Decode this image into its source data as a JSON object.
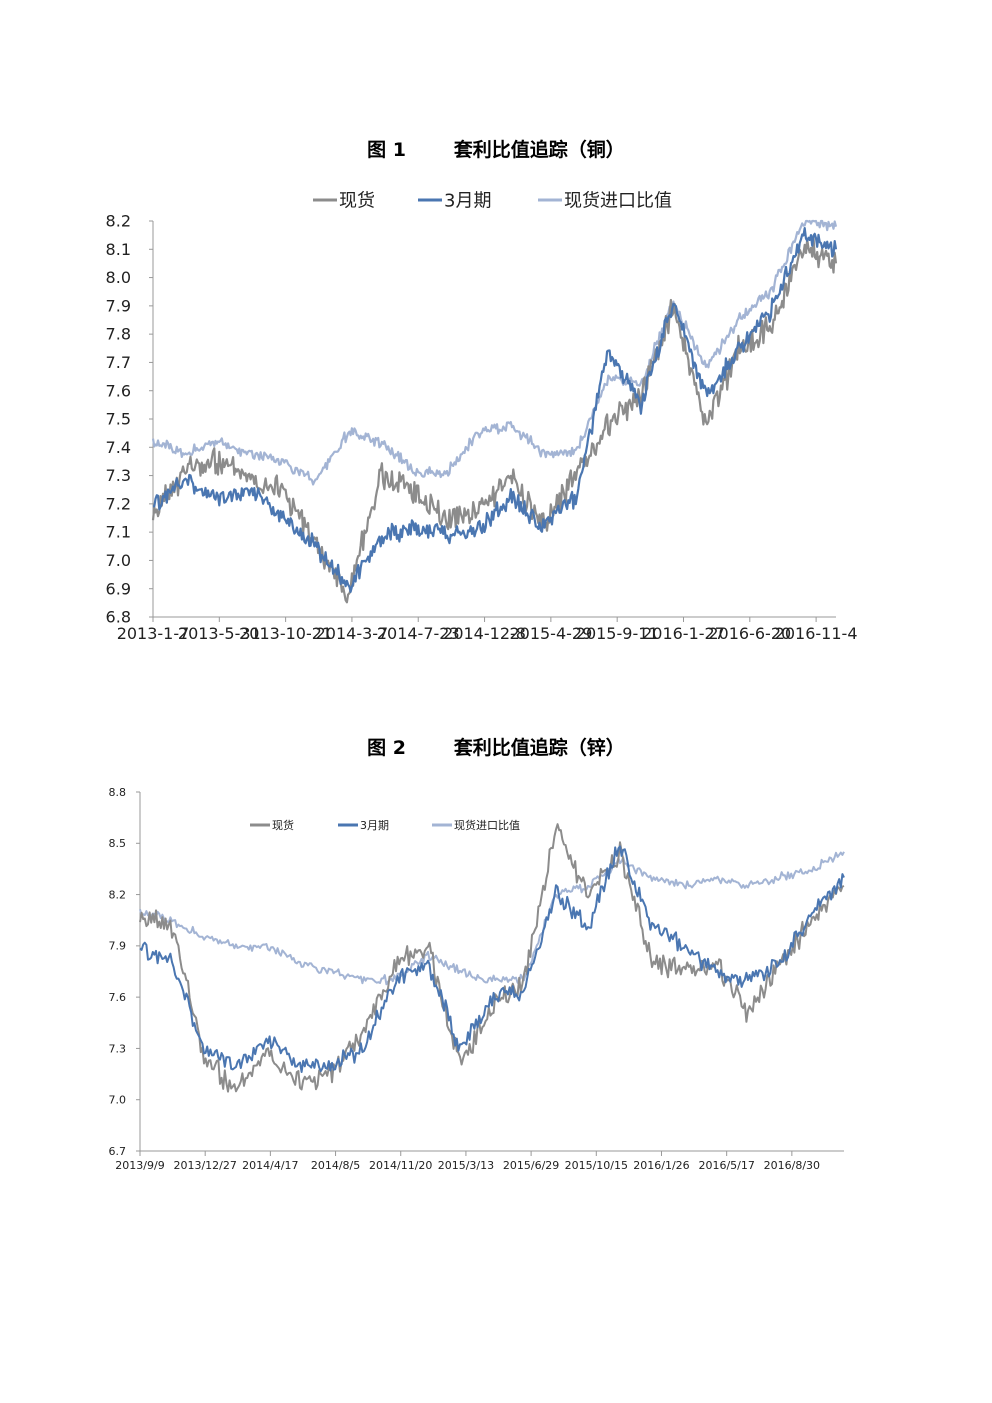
{
  "colors": {
    "spot": "#8c8c8c",
    "m3": "#4a76b1",
    "import": "#a3b4d4",
    "axis": "#999999"
  },
  "figures": [
    {
      "number_label": "图 1",
      "title": "套利比值追踪（铜）"
    },
    {
      "number_label": "图 2",
      "title": "套利比值追踪（锌）"
    }
  ],
  "chart_data": [
    {
      "type": "line",
      "title": "套利比值追踪（铜）",
      "legend": [
        "现货",
        "3月期",
        "现货进口比值"
      ],
      "legend_position": "top",
      "ylim": [
        6.8,
        8.2
      ],
      "yticks": [
        "8.2",
        "8.1",
        "8.0",
        "7.9",
        "7.8",
        "7.7",
        "7.6",
        "7.5",
        "7.4",
        "7.3",
        "7.2",
        "7.1",
        "7.0",
        "6.9",
        "6.8"
      ],
      "xticks": [
        "2013-1-7",
        "2013-5-31",
        "2013-10-21",
        "2014-3-7",
        "2014-7-23",
        "2014-12-8",
        "2015-4-29",
        "2015-9-11",
        "2016-1-27",
        "2016-6-20",
        "2016-11-4"
      ],
      "x": [
        "2013-1-7",
        "2013-3-15",
        "2013-5-31",
        "2013-8-10",
        "2013-10-21",
        "2013-12-30",
        "2014-3-7",
        "2014-5-15",
        "2014-7-23",
        "2014-10-1",
        "2014-12-8",
        "2015-2-17",
        "2015-4-29",
        "2015-7-5",
        "2015-9-11",
        "2015-11-20",
        "2016-1-27",
        "2016-4-8",
        "2016-6-20",
        "2016-8-28",
        "2016-11-4",
        "2016-12-2"
      ],
      "series": [
        {
          "name": "现货",
          "values": [
            7.15,
            7.32,
            7.35,
            7.3,
            7.25,
            7.05,
            6.88,
            7.3,
            7.25,
            7.15,
            7.18,
            7.3,
            7.12,
            7.3,
            7.48,
            7.58,
            7.9,
            7.47,
            7.75,
            7.82,
            8.12,
            8.05
          ]
        },
        {
          "name": "3月期",
          "values": [
            7.2,
            7.28,
            7.22,
            7.25,
            7.15,
            7.05,
            6.9,
            7.08,
            7.12,
            7.1,
            7.1,
            7.22,
            7.12,
            7.22,
            7.75,
            7.55,
            7.92,
            7.58,
            7.75,
            7.88,
            8.15,
            8.1
          ]
        },
        {
          "name": "现货进口比值",
          "values": [
            7.42,
            7.38,
            7.42,
            7.38,
            7.35,
            7.28,
            7.45,
            7.42,
            7.32,
            7.3,
            7.45,
            7.48,
            7.38,
            7.38,
            7.65,
            7.62,
            7.92,
            7.68,
            7.85,
            7.95,
            8.2,
            8.18
          ]
        }
      ]
    },
    {
      "type": "line",
      "title": "套利比值追踪（锌）",
      "legend": [
        "现货",
        "3月期",
        "现货进口比值"
      ],
      "legend_position": "top",
      "ylim": [
        6.7,
        8.8
      ],
      "yticks": [
        "8.8",
        "8.5",
        "8.2",
        "7.9",
        "7.6",
        "7.3",
        "7.0",
        "6.7"
      ],
      "xticks": [
        "2013/9/9",
        "2013/12/27",
        "2014/4/17",
        "2014/8/5",
        "2014/11/20",
        "2015/3/13",
        "2015/6/29",
        "2015/10/15",
        "2016/1/26",
        "2016/5/17",
        "2016/8/30"
      ],
      "x": [
        "2013/9/9",
        "2013/11/1",
        "2013/12/27",
        "2014/2/20",
        "2014/4/17",
        "2014/6/10",
        "2014/8/5",
        "2014/9/28",
        "2014/11/20",
        "2015/1/15",
        "2015/3/13",
        "2015/5/5",
        "2015/6/29",
        "2015/8/20",
        "2015/10/15",
        "2015/12/10",
        "2016/1/26",
        "2016/3/20",
        "2016/5/17",
        "2016/7/10",
        "2016/8/30",
        "2016/10/20",
        "2016/11/15"
      ],
      "series": [
        {
          "name": "现货",
          "values": [
            8.05,
            8.02,
            7.25,
            7.05,
            7.3,
            7.1,
            7.15,
            7.4,
            7.8,
            7.9,
            7.2,
            7.55,
            7.7,
            8.6,
            8.2,
            8.45,
            7.8,
            7.75,
            7.8,
            7.5,
            7.8,
            8.05,
            8.25
          ]
        },
        {
          "name": "3月期",
          "values": [
            7.9,
            7.8,
            7.3,
            7.2,
            7.35,
            7.2,
            7.2,
            7.3,
            7.7,
            7.8,
            7.3,
            7.6,
            7.65,
            8.2,
            8.0,
            8.5,
            8.0,
            7.9,
            7.75,
            7.7,
            7.8,
            8.1,
            8.3
          ]
        },
        {
          "name": "现货进口比值",
          "values": [
            8.1,
            8.05,
            7.95,
            7.9,
            7.9,
            7.8,
            7.75,
            7.7,
            7.7,
            7.85,
            7.75,
            7.7,
            7.7,
            8.2,
            8.25,
            8.4,
            8.3,
            8.25,
            8.3,
            8.25,
            8.3,
            8.35,
            8.45
          ]
        }
      ]
    }
  ]
}
